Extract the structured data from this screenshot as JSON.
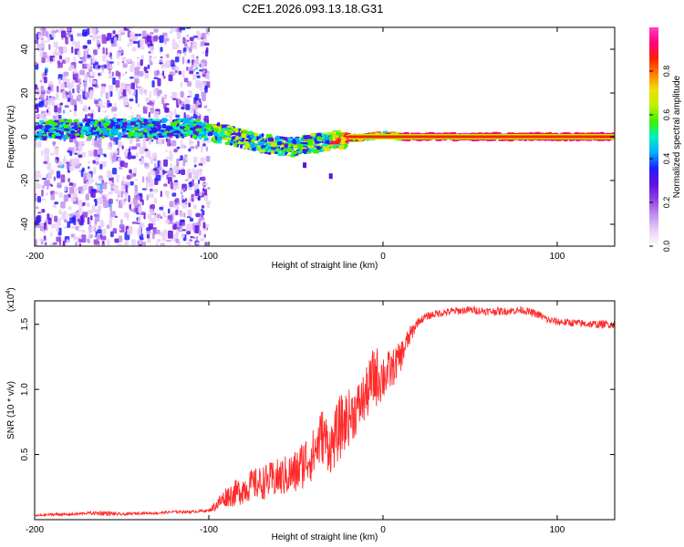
{
  "title": "C2E1.2026.093.13.18.G31",
  "chart_data": [
    {
      "type": "heatmap",
      "xlabel": "Height of straight line (km)",
      "ylabel": "Frequency (Hz)",
      "xlim": [
        -200,
        133
      ],
      "ylim": [
        -50,
        50
      ],
      "xticks": [
        -200,
        -100,
        0,
        100
      ],
      "xtick_labels": [
        "-200",
        "-100",
        "0",
        "100"
      ],
      "yticks": [
        -40,
        -20,
        0,
        20,
        40
      ],
      "ytick_labels": [
        "-40",
        "-20",
        "0",
        "20",
        "40"
      ],
      "colorbar": {
        "label": "Normalized spectral amplitude",
        "range": [
          0,
          1
        ],
        "ticks": [
          0.0,
          0.2,
          0.4,
          0.6,
          0.8
        ],
        "tick_labels": [
          "0.0",
          "0.2",
          "0.4",
          "0.6",
          "0.8"
        ],
        "colors": [
          "#ffffff",
          "#e8d0f8",
          "#c090f0",
          "#9040e0",
          "#6010e0",
          "#2020ff",
          "#00b0ff",
          "#00f0c0",
          "#40f000",
          "#c0f000",
          "#f0e000",
          "#ff8000",
          "#ff2000",
          "#ff0080",
          "#ff40c0"
        ]
      },
      "features": {
        "scatter_region_x": [
          -200,
          -100
        ],
        "signal_trace": [
          [
            -200,
            3
          ],
          [
            -150,
            4
          ],
          [
            -110,
            4
          ],
          [
            -90,
            1
          ],
          [
            -70,
            -3
          ],
          [
            -50,
            -5
          ],
          [
            -40,
            -3
          ],
          [
            -30,
            -2
          ],
          [
            -20,
            -1
          ],
          [
            -10,
            0
          ],
          [
            0,
            1
          ],
          [
            10,
            0
          ],
          [
            133,
            0
          ]
        ],
        "isolated_points": [
          [
            -45,
            -13
          ],
          [
            -30,
            -18
          ]
        ]
      }
    },
    {
      "type": "line",
      "xlabel": "Height of straight line (km)",
      "ylabel": "SNR (10 * v/v)",
      "yscale_label": "(x10",
      "yscale_exp": "4",
      "xlim": [
        -200,
        133
      ],
      "ylim": [
        0,
        1.68
      ],
      "xticks": [
        -200,
        -100,
        0,
        100
      ],
      "xtick_labels": [
        "-200",
        "-100",
        "0",
        "100"
      ],
      "yticks": [
        0.5,
        1.0,
        1.5
      ],
      "ytick_labels": [
        "0.5",
        "1.0",
        "1.5"
      ],
      "color": "#ff2a2a",
      "series": [
        {
          "name": "SNR",
          "x": [
            -200,
            -190,
            -180,
            -170,
            -160,
            -150,
            -140,
            -130,
            -120,
            -110,
            -100,
            -95,
            -90,
            -85,
            -80,
            -75,
            -70,
            -65,
            -60,
            -55,
            -50,
            -45,
            -40,
            -35,
            -30,
            -25,
            -20,
            -15,
            -10,
            -5,
            0,
            5,
            10,
            15,
            20,
            25,
            30,
            40,
            50,
            60,
            70,
            80,
            90,
            95,
            100,
            110,
            120,
            133
          ],
          "y": [
            0.03,
            0.04,
            0.04,
            0.05,
            0.05,
            0.04,
            0.05,
            0.05,
            0.06,
            0.06,
            0.07,
            0.12,
            0.18,
            0.2,
            0.24,
            0.27,
            0.28,
            0.3,
            0.32,
            0.34,
            0.36,
            0.45,
            0.5,
            0.65,
            0.55,
            0.7,
            0.78,
            0.85,
            0.95,
            1.1,
            1.1,
            1.15,
            1.25,
            1.4,
            1.52,
            1.56,
            1.58,
            1.6,
            1.61,
            1.6,
            1.6,
            1.61,
            1.57,
            1.53,
            1.52,
            1.51,
            1.5,
            1.5
          ],
          "noise_amplitude": [
            0.01,
            0.01,
            0.01,
            0.01,
            0.02,
            0.01,
            0.01,
            0.01,
            0.01,
            0.01,
            0.01,
            0.05,
            0.08,
            0.1,
            0.12,
            0.12,
            0.13,
            0.14,
            0.15,
            0.16,
            0.18,
            0.2,
            0.2,
            0.22,
            0.2,
            0.25,
            0.22,
            0.2,
            0.2,
            0.25,
            0.2,
            0.15,
            0.12,
            0.08,
            0.03,
            0.03,
            0.03,
            0.03,
            0.03,
            0.03,
            0.03,
            0.03,
            0.03,
            0.03,
            0.03,
            0.03,
            0.03,
            0.03
          ]
        }
      ]
    }
  ]
}
